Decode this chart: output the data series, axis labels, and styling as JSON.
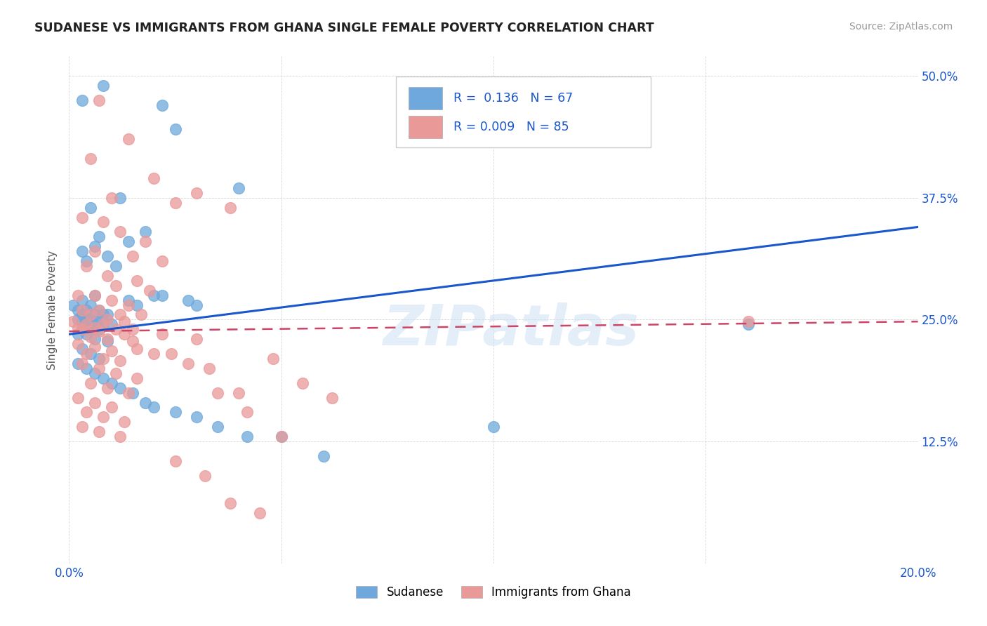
{
  "title": "SUDANESE VS IMMIGRANTS FROM GHANA SINGLE FEMALE POVERTY CORRELATION CHART",
  "source": "Source: ZipAtlas.com",
  "ylabel": "Single Female Poverty",
  "xlim": [
    0.0,
    0.2
  ],
  "ylim": [
    0.0,
    0.52
  ],
  "xtick_positions": [
    0.0,
    0.05,
    0.1,
    0.15,
    0.2
  ],
  "xtick_labels": [
    "0.0%",
    "",
    "",
    "",
    "20.0%"
  ],
  "ytick_positions": [
    0.0,
    0.125,
    0.25,
    0.375,
    0.5
  ],
  "ytick_labels": [
    "",
    "12.5%",
    "25.0%",
    "37.5%",
    "50.0%"
  ],
  "blue_R": 0.136,
  "blue_N": 67,
  "pink_R": 0.009,
  "pink_N": 85,
  "blue_color": "#6fa8dc",
  "pink_color": "#ea9999",
  "blue_line_color": "#1a56cc",
  "pink_line_color": "#cc4466",
  "legend_label1": "Sudanese",
  "legend_label2": "Immigrants from Ghana",
  "watermark": "ZIPatlas",
  "blue_line_x0": 0.0,
  "blue_line_y0": 0.235,
  "blue_line_x1": 0.2,
  "blue_line_y1": 0.345,
  "pink_line_x0": 0.0,
  "pink_line_y0": 0.238,
  "pink_line_x1": 0.2,
  "pink_line_y1": 0.248,
  "blue_scatter_x": [
    0.008,
    0.003,
    0.022,
    0.025,
    0.04,
    0.012,
    0.005,
    0.018,
    0.007,
    0.014,
    0.006,
    0.003,
    0.009,
    0.004,
    0.011,
    0.006,
    0.003,
    0.001,
    0.005,
    0.007,
    0.002,
    0.004,
    0.008,
    0.003,
    0.006,
    0.009,
    0.005,
    0.007,
    0.004,
    0.002,
    0.003,
    0.006,
    0.008,
    0.01,
    0.005,
    0.003,
    0.007,
    0.004,
    0.002,
    0.006,
    0.009,
    0.003,
    0.005,
    0.007,
    0.002,
    0.004,
    0.006,
    0.008,
    0.01,
    0.012,
    0.015,
    0.018,
    0.02,
    0.025,
    0.03,
    0.035,
    0.042,
    0.05,
    0.06,
    0.1,
    0.16,
    0.014,
    0.02,
    0.028,
    0.016,
    0.022,
    0.03
  ],
  "blue_scatter_y": [
    0.49,
    0.475,
    0.47,
    0.445,
    0.385,
    0.375,
    0.365,
    0.34,
    0.335,
    0.33,
    0.325,
    0.32,
    0.315,
    0.31,
    0.305,
    0.275,
    0.27,
    0.265,
    0.265,
    0.26,
    0.26,
    0.26,
    0.255,
    0.255,
    0.255,
    0.255,
    0.25,
    0.25,
    0.25,
    0.25,
    0.248,
    0.245,
    0.245,
    0.245,
    0.24,
    0.24,
    0.24,
    0.235,
    0.235,
    0.23,
    0.228,
    0.22,
    0.215,
    0.21,
    0.205,
    0.2,
    0.195,
    0.19,
    0.185,
    0.18,
    0.175,
    0.165,
    0.16,
    0.155,
    0.15,
    0.14,
    0.13,
    0.13,
    0.11,
    0.14,
    0.245,
    0.27,
    0.275,
    0.27,
    0.265,
    0.275,
    0.265
  ],
  "pink_scatter_x": [
    0.007,
    0.014,
    0.005,
    0.02,
    0.03,
    0.01,
    0.025,
    0.038,
    0.003,
    0.008,
    0.012,
    0.018,
    0.006,
    0.015,
    0.022,
    0.004,
    0.009,
    0.016,
    0.011,
    0.019,
    0.002,
    0.006,
    0.01,
    0.014,
    0.003,
    0.007,
    0.012,
    0.017,
    0.005,
    0.009,
    0.013,
    0.001,
    0.004,
    0.008,
    0.002,
    0.006,
    0.011,
    0.003,
    0.007,
    0.013,
    0.005,
    0.009,
    0.015,
    0.002,
    0.006,
    0.01,
    0.004,
    0.008,
    0.012,
    0.003,
    0.007,
    0.011,
    0.016,
    0.005,
    0.009,
    0.014,
    0.002,
    0.006,
    0.01,
    0.004,
    0.008,
    0.013,
    0.003,
    0.007,
    0.012,
    0.02,
    0.028,
    0.035,
    0.042,
    0.048,
    0.055,
    0.062,
    0.025,
    0.032,
    0.038,
    0.045,
    0.015,
    0.022,
    0.03,
    0.016,
    0.024,
    0.033,
    0.04,
    0.05,
    0.16
  ],
  "pink_scatter_y": [
    0.475,
    0.435,
    0.415,
    0.395,
    0.38,
    0.375,
    0.37,
    0.365,
    0.355,
    0.35,
    0.34,
    0.33,
    0.32,
    0.315,
    0.31,
    0.305,
    0.295,
    0.29,
    0.285,
    0.28,
    0.275,
    0.275,
    0.27,
    0.265,
    0.26,
    0.26,
    0.255,
    0.255,
    0.255,
    0.25,
    0.248,
    0.248,
    0.245,
    0.245,
    0.242,
    0.242,
    0.24,
    0.24,
    0.238,
    0.235,
    0.232,
    0.23,
    0.228,
    0.225,
    0.222,
    0.218,
    0.215,
    0.21,
    0.208,
    0.205,
    0.2,
    0.195,
    0.19,
    0.185,
    0.18,
    0.175,
    0.17,
    0.165,
    0.16,
    0.155,
    0.15,
    0.145,
    0.14,
    0.135,
    0.13,
    0.215,
    0.205,
    0.175,
    0.155,
    0.21,
    0.185,
    0.17,
    0.105,
    0.09,
    0.062,
    0.052,
    0.24,
    0.235,
    0.23,
    0.22,
    0.215,
    0.2,
    0.175,
    0.13,
    0.248
  ]
}
